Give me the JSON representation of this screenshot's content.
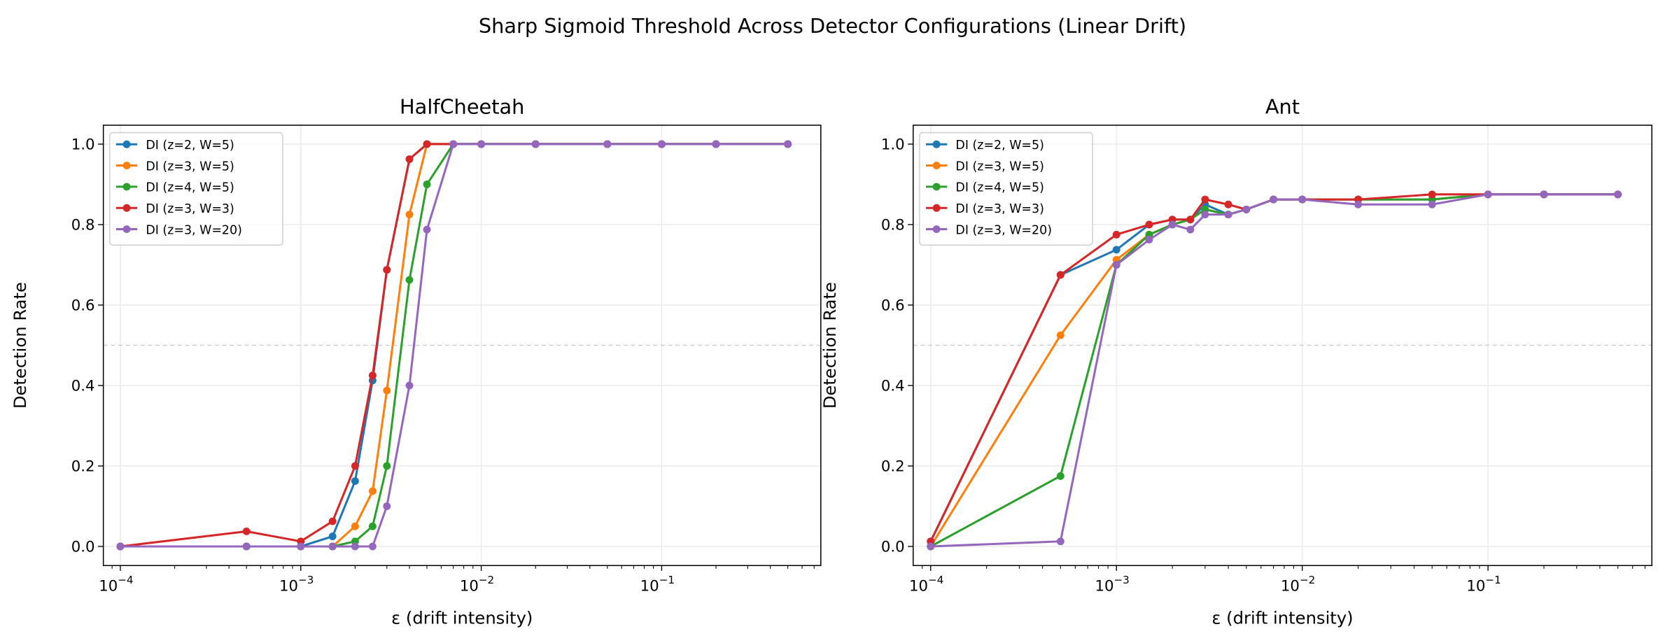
{
  "chart_data": {
    "suptitle": "Sharp Sigmoid Threshold Across Detector Configurations (Linear Drift)",
    "x": [
      0.0001,
      0.0005,
      0.001,
      0.0015,
      0.002,
      0.0025,
      0.003,
      0.004,
      0.005,
      0.007,
      0.01,
      0.02,
      0.05,
      0.1,
      0.2,
      0.5
    ],
    "xscale": "log",
    "xlim": [
      8.05e-05,
      0.762
    ],
    "ylim": [
      -0.0475,
      1.047
    ],
    "grid": true,
    "reference_line": {
      "y": 0.5,
      "style": "dashed",
      "color": "#cccccc"
    },
    "x_ticks": [
      {
        "value": 0.0001,
        "base": "10",
        "exp": "−4"
      },
      {
        "value": 0.001,
        "base": "10",
        "exp": "−3"
      },
      {
        "value": 0.01,
        "base": "10",
        "exp": "−2"
      },
      {
        "value": 0.1,
        "base": "10",
        "exp": "−1"
      }
    ],
    "y_ticks": [
      "0.0",
      "0.2",
      "0.4",
      "0.6",
      "0.8",
      "1.0"
    ],
    "legend_placement": "upper-left",
    "panels": [
      {
        "type": "line",
        "title": "HalfCheetah",
        "xlabel": "ε (drift intensity)",
        "ylabel": "Detection Rate",
        "series": [
          {
            "name": "DI (z=2, W=5)",
            "color": "#1f77b4",
            "values": [
              0,
              0,
              0,
              0.025,
              0.1625,
              0.4125,
              0.6875,
              0.9625,
              1,
              1,
              1,
              1,
              1,
              1,
              1,
              1
            ]
          },
          {
            "name": "DI (z=3, W=5)",
            "color": "#ff7f0e",
            "values": [
              0,
              0,
              0,
              0,
              0.05,
              0.1375,
              0.3875,
              0.825,
              1,
              1,
              1,
              1,
              1,
              1,
              1,
              1
            ]
          },
          {
            "name": "DI (z=4, W=5)",
            "color": "#2ca02c",
            "values": [
              0,
              0,
              0,
              0,
              0.0125,
              0.05,
              0.2,
              0.6625,
              0.9,
              1,
              1,
              1,
              1,
              1,
              1,
              1
            ]
          },
          {
            "name": "DI (z=3, W=3)",
            "color": "#d62728",
            "values": [
              0,
              0.0375,
              0.0125,
              0.0625,
              0.2,
              0.425,
              0.6875,
              0.9625,
              1,
              1,
              1,
              1,
              1,
              1,
              1,
              1
            ]
          },
          {
            "name": "DI (z=3, W=20)",
            "color": "#9467bd",
            "values": [
              0,
              0,
              0,
              0,
              0,
              0,
              0.1,
              0.4,
              0.7875,
              1,
              1,
              1,
              1,
              1,
              1,
              1
            ]
          }
        ]
      },
      {
        "type": "line",
        "title": "Ant",
        "xlabel": "ε (drift intensity)",
        "ylabel": "Detection Rate",
        "series": [
          {
            "name": "DI (z=2, W=5)",
            "color": "#1f77b4",
            "values": [
              0.0125,
              0.675,
              0.7375,
              0.8,
              0.8125,
              0.8125,
              0.85,
              0.825,
              0.8375,
              0.8625,
              0.8625,
              0.8625,
              0.8625,
              0.875,
              0.875,
              0.875
            ]
          },
          {
            "name": "DI (z=3, W=5)",
            "color": "#ff7f0e",
            "values": [
              0,
              0.525,
              0.7125,
              0.775,
              0.8,
              0.8125,
              0.8375,
              0.825,
              0.8375,
              0.8625,
              0.8625,
              0.8625,
              0.8625,
              0.875,
              0.875,
              0.875
            ]
          },
          {
            "name": "DI (z=4, W=5)",
            "color": "#2ca02c",
            "values": [
              0,
              0.175,
              0.7,
              0.775,
              0.8,
              0.8125,
              0.8375,
              0.825,
              0.8375,
              0.8625,
              0.8625,
              0.8625,
              0.8625,
              0.875,
              0.875,
              0.875
            ]
          },
          {
            "name": "DI (z=3, W=3)",
            "color": "#d62728",
            "values": [
              0.0125,
              0.675,
              0.775,
              0.8,
              0.8125,
              0.8125,
              0.8625,
              0.85,
              0.8375,
              0.8625,
              0.8625,
              0.8625,
              0.875,
              0.875,
              0.875,
              0.875
            ]
          },
          {
            "name": "DI (z=3, W=20)",
            "color": "#9467bd",
            "values": [
              0,
              0.0125,
              0.7,
              0.7625,
              0.8,
              0.7875,
              0.825,
              0.825,
              0.8375,
              0.8625,
              0.8625,
              0.85,
              0.85,
              0.875,
              0.875,
              0.875
            ]
          }
        ]
      }
    ]
  }
}
